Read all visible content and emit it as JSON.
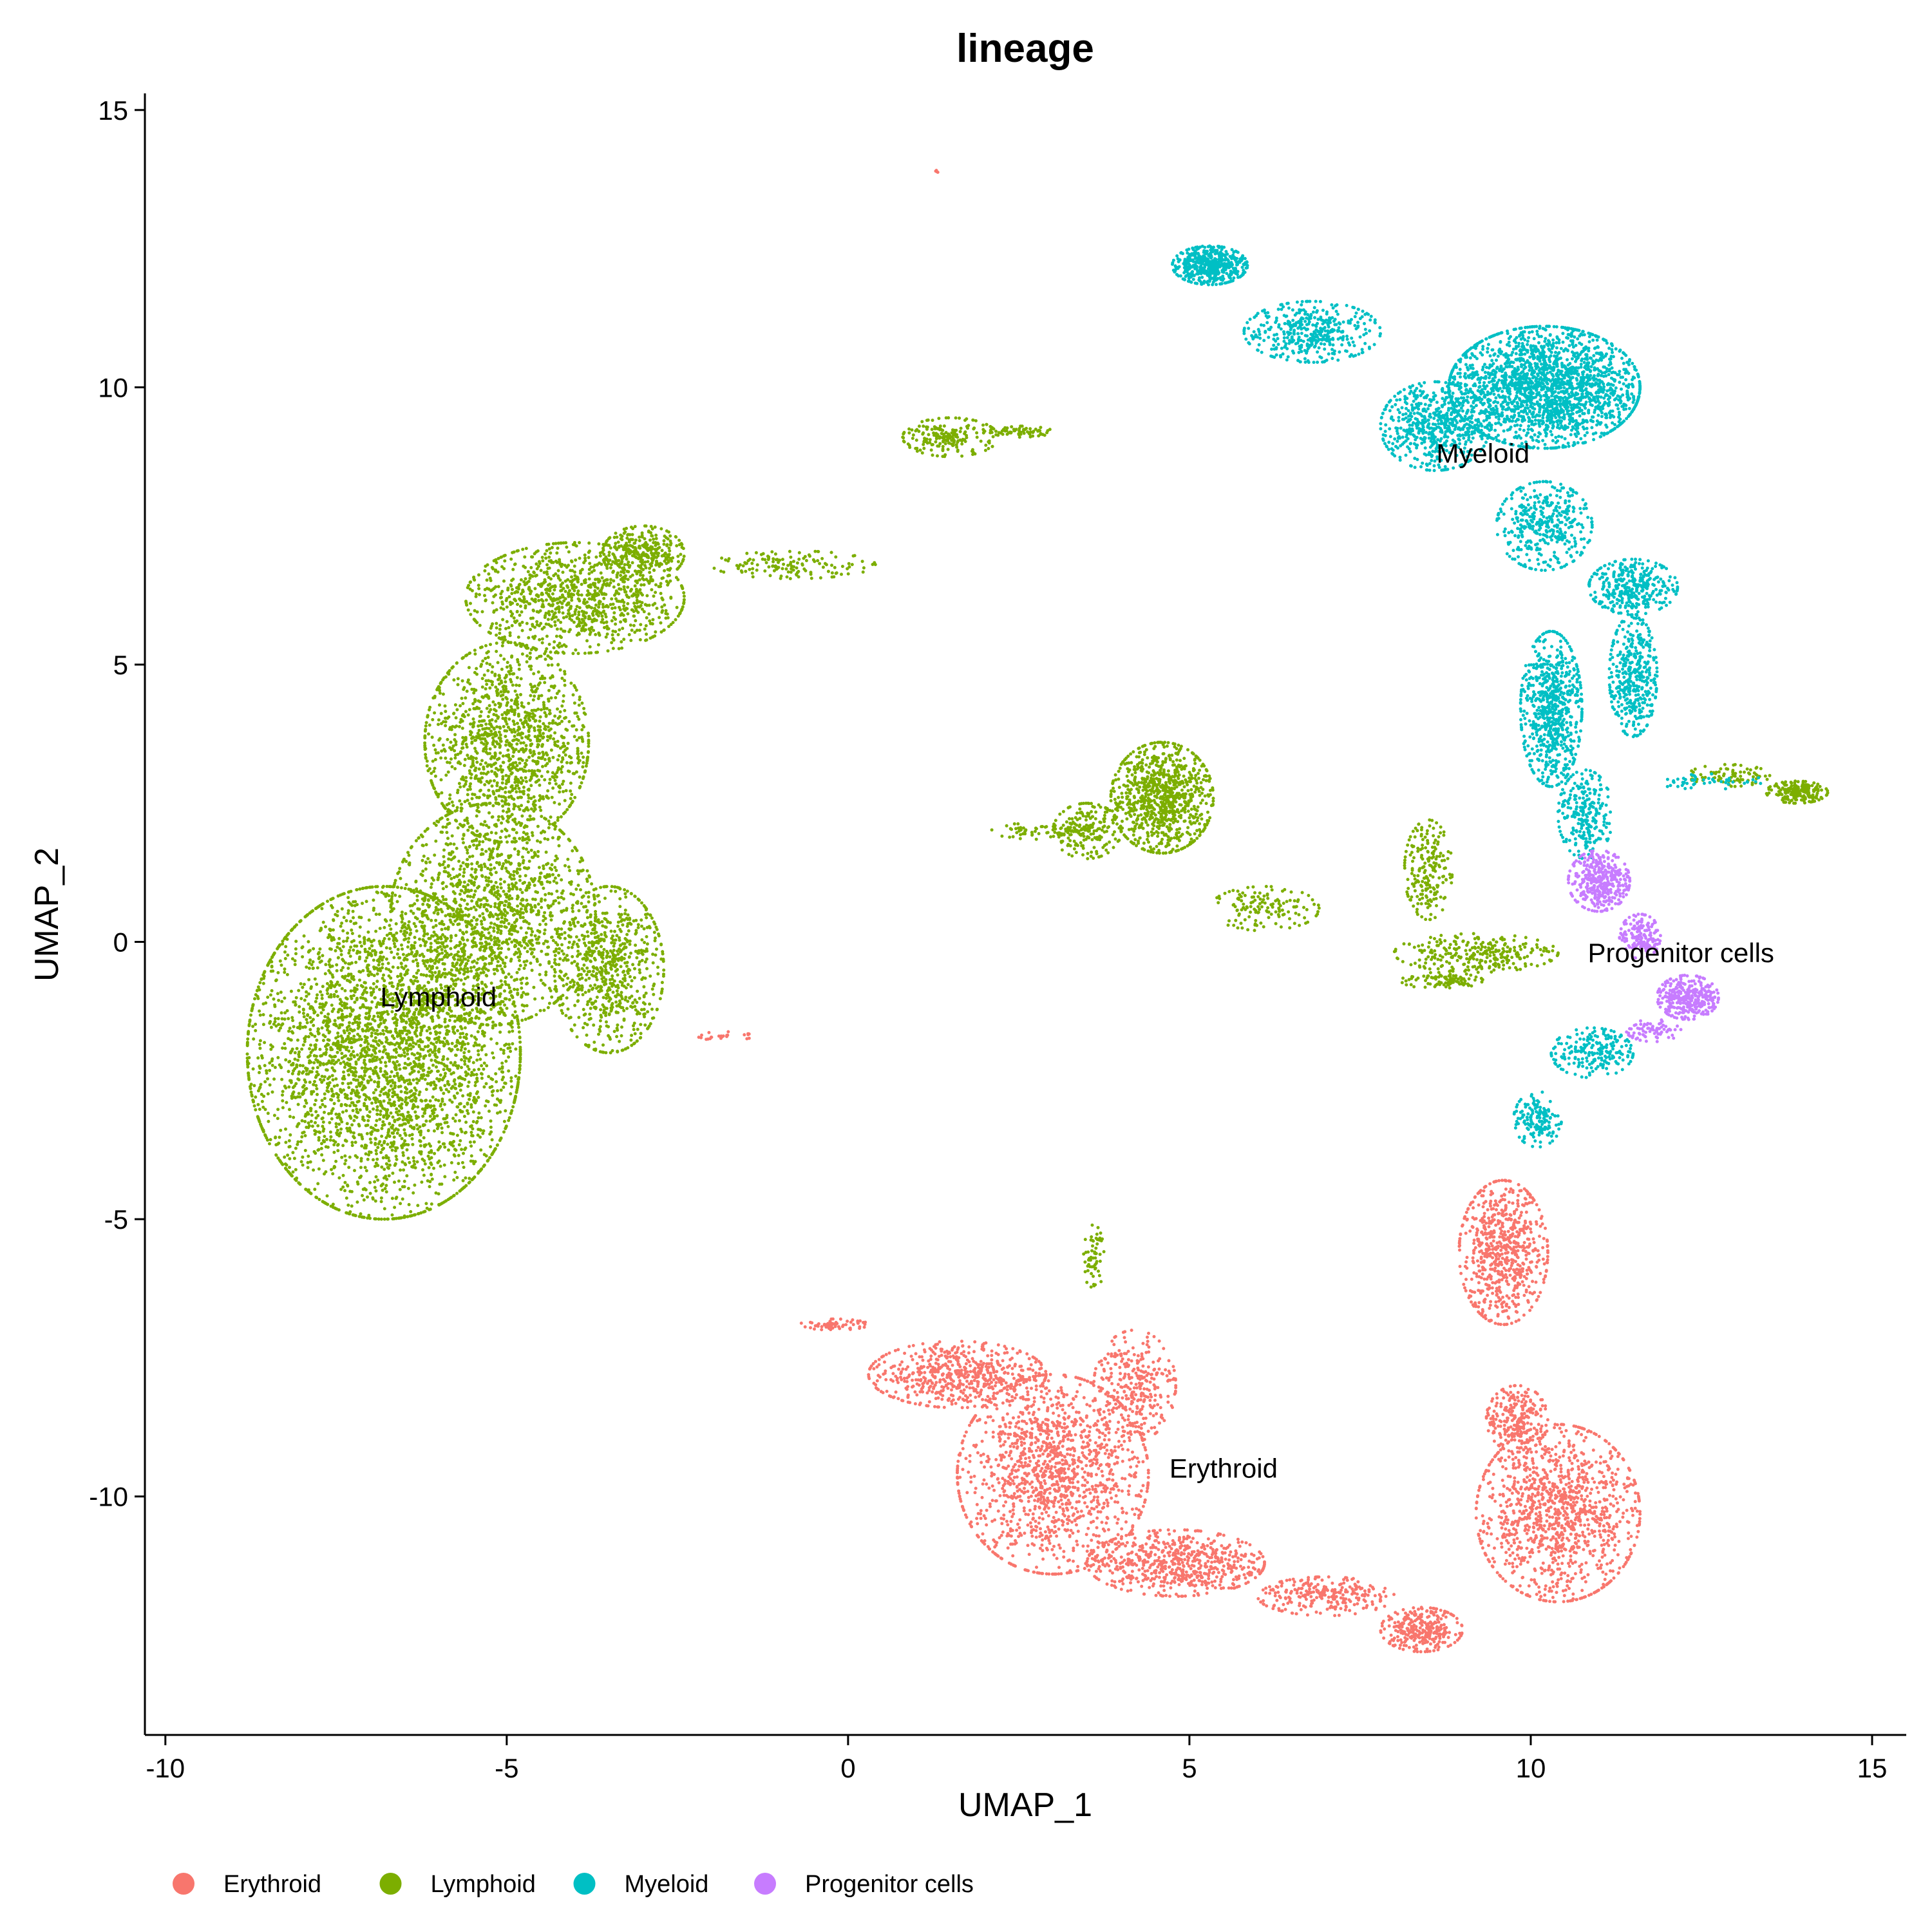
{
  "chart_data": {
    "type": "scatter",
    "title": "lineage",
    "xlabel": "UMAP_1",
    "ylabel": "UMAP_2",
    "xlim": [
      -10.3,
      15.5
    ],
    "ylim": [
      -14.3,
      15.3
    ],
    "x_ticks": [
      -10,
      -5,
      0,
      5,
      10,
      15
    ],
    "y_ticks": [
      -10,
      -5,
      0,
      5,
      10,
      15
    ],
    "x_tick_labels": [
      "-10",
      "-5",
      "0",
      "5",
      "10",
      "15"
    ],
    "y_tick_labels": [
      "-10",
      "-5",
      "0",
      "5",
      "10",
      "15"
    ],
    "grid": false,
    "legend_position": "bottom-left",
    "series": [
      {
        "name": "Erythroid",
        "color": "#F8766D",
        "label": "Erythroid",
        "label_pos": [
          5.5,
          -9.5
        ],
        "regions": [
          {
            "cx": 3.0,
            "cy": -9.6,
            "rx": 1.4,
            "ry": 1.8,
            "n": 1400
          },
          {
            "cx": 1.6,
            "cy": -7.8,
            "rx": 1.3,
            "ry": 0.6,
            "n": 600
          },
          {
            "cx": 4.8,
            "cy": -11.2,
            "rx": 1.3,
            "ry": 0.6,
            "n": 650
          },
          {
            "cx": 7.0,
            "cy": -11.8,
            "rx": 1.0,
            "ry": 0.35,
            "n": 260
          },
          {
            "cx": 8.4,
            "cy": -12.4,
            "rx": 0.6,
            "ry": 0.4,
            "n": 300
          },
          {
            "cx": 10.4,
            "cy": -10.3,
            "rx": 1.2,
            "ry": 1.6,
            "n": 1200
          },
          {
            "cx": 9.8,
            "cy": -8.6,
            "rx": 0.45,
            "ry": 0.6,
            "n": 250
          },
          {
            "cx": 9.6,
            "cy": -5.6,
            "rx": 0.65,
            "ry": 1.3,
            "n": 700
          },
          {
            "cx": 4.2,
            "cy": -8.0,
            "rx": 0.6,
            "ry": 1.0,
            "n": 300
          },
          {
            "cx": -1.8,
            "cy": -1.7,
            "rx": 0.4,
            "ry": 0.08,
            "n": 25
          },
          {
            "cx": 1.3,
            "cy": 13.9,
            "rx": 0.03,
            "ry": 0.03,
            "n": 4
          },
          {
            "cx": -0.2,
            "cy": -6.9,
            "rx": 0.5,
            "ry": 0.1,
            "n": 60
          }
        ]
      },
      {
        "name": "Lymphoid",
        "color": "#7CAE00",
        "label": "Lymphoid",
        "label_pos": [
          -6.0,
          -1.0
        ],
        "regions": [
          {
            "cx": -6.8,
            "cy": -2.0,
            "rx": 2.0,
            "ry": 3.0,
            "n": 3500
          },
          {
            "cx": -5.2,
            "cy": 0.5,
            "rx": 1.5,
            "ry": 2.0,
            "n": 1500
          },
          {
            "cx": -3.5,
            "cy": -0.5,
            "rx": 0.8,
            "ry": 1.5,
            "n": 700
          },
          {
            "cx": -5.0,
            "cy": 3.6,
            "rx": 1.2,
            "ry": 1.8,
            "n": 1300
          },
          {
            "cx": -4.0,
            "cy": 6.2,
            "rx": 1.6,
            "ry": 1.0,
            "n": 1000
          },
          {
            "cx": -3.0,
            "cy": 7.0,
            "rx": 0.6,
            "ry": 0.5,
            "n": 300
          },
          {
            "cx": -0.8,
            "cy": 6.8,
            "rx": 1.2,
            "ry": 0.25,
            "n": 140
          },
          {
            "cx": 4.6,
            "cy": 2.6,
            "rx": 0.75,
            "ry": 1.0,
            "n": 900
          },
          {
            "cx": 3.5,
            "cy": 2.0,
            "rx": 0.5,
            "ry": 0.5,
            "n": 200
          },
          {
            "cx": 2.8,
            "cy": 2.0,
            "rx": 0.7,
            "ry": 0.15,
            "n": 60
          },
          {
            "cx": 6.1,
            "cy": 0.6,
            "rx": 0.8,
            "ry": 0.4,
            "n": 140
          },
          {
            "cx": 8.5,
            "cy": 1.3,
            "rx": 0.35,
            "ry": 0.9,
            "n": 200
          },
          {
            "cx": 9.2,
            "cy": -0.2,
            "rx": 1.2,
            "ry": 0.35,
            "n": 280
          },
          {
            "cx": 8.7,
            "cy": -0.7,
            "rx": 0.6,
            "ry": 0.15,
            "n": 90
          },
          {
            "cx": 1.5,
            "cy": 9.1,
            "rx": 0.7,
            "ry": 0.35,
            "n": 200
          },
          {
            "cx": 2.5,
            "cy": 9.2,
            "rx": 0.5,
            "ry": 0.1,
            "n": 60
          },
          {
            "cx": 3.6,
            "cy": -5.7,
            "rx": 0.15,
            "ry": 0.6,
            "n": 60
          },
          {
            "cx": 13.9,
            "cy": 2.7,
            "rx": 0.45,
            "ry": 0.2,
            "n": 200
          },
          {
            "cx": 12.9,
            "cy": 3.0,
            "rx": 0.6,
            "ry": 0.2,
            "n": 80
          }
        ]
      },
      {
        "name": "Myeloid",
        "color": "#00BFC4",
        "label": "Myeloid",
        "label_pos": [
          9.3,
          8.8
        ],
        "regions": [
          {
            "cx": 10.2,
            "cy": 10.0,
            "rx": 1.4,
            "ry": 1.1,
            "n": 2100
          },
          {
            "cx": 8.6,
            "cy": 9.3,
            "rx": 0.8,
            "ry": 0.8,
            "n": 600
          },
          {
            "cx": 5.3,
            "cy": 12.2,
            "rx": 0.55,
            "ry": 0.35,
            "n": 500
          },
          {
            "cx": 6.8,
            "cy": 11.0,
            "rx": 1.0,
            "ry": 0.55,
            "n": 420
          },
          {
            "cx": 10.2,
            "cy": 7.5,
            "rx": 0.7,
            "ry": 0.8,
            "n": 400
          },
          {
            "cx": 11.5,
            "cy": 6.4,
            "rx": 0.65,
            "ry": 0.5,
            "n": 350
          },
          {
            "cx": 10.3,
            "cy": 4.2,
            "rx": 0.45,
            "ry": 1.4,
            "n": 700
          },
          {
            "cx": 11.5,
            "cy": 4.8,
            "rx": 0.35,
            "ry": 1.1,
            "n": 400
          },
          {
            "cx": 10.8,
            "cy": 2.3,
            "rx": 0.4,
            "ry": 0.8,
            "n": 250
          },
          {
            "cx": 10.9,
            "cy": -2.0,
            "rx": 0.6,
            "ry": 0.45,
            "n": 220
          },
          {
            "cx": 10.1,
            "cy": -3.2,
            "rx": 0.35,
            "ry": 0.5,
            "n": 150
          },
          {
            "cx": 12.6,
            "cy": 2.9,
            "rx": 0.8,
            "ry": 0.15,
            "n": 50
          }
        ]
      },
      {
        "name": "Progenitor cells",
        "color": "#C77CFF",
        "label": "Progenitor cells",
        "label_pos": [
          12.2,
          -0.2
        ],
        "regions": [
          {
            "cx": 11.0,
            "cy": 1.1,
            "rx": 0.45,
            "ry": 0.55,
            "n": 380
          },
          {
            "cx": 11.6,
            "cy": 0.1,
            "rx": 0.3,
            "ry": 0.4,
            "n": 160
          },
          {
            "cx": 12.3,
            "cy": -1.0,
            "rx": 0.45,
            "ry": 0.4,
            "n": 330
          },
          {
            "cx": 11.8,
            "cy": -1.6,
            "rx": 0.4,
            "ry": 0.2,
            "n": 80
          }
        ]
      }
    ]
  }
}
